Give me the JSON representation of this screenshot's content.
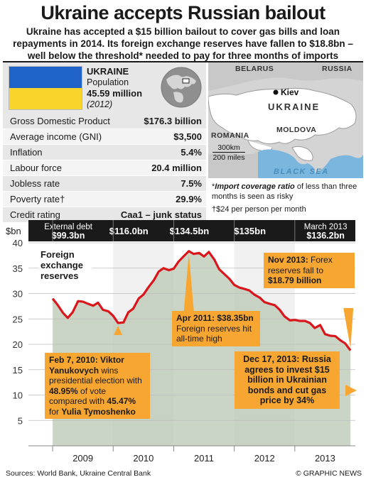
{
  "title": "Ukraine accepts Russian bailout",
  "subtitle": "Ukraine has accepted a $15 billion bailout to cover gas bills and loan repayments in 2014. Its foreign exchange reserves have fallen to $18.8bn – well below the threshold* needed to pay for three months of imports",
  "country": {
    "name": "UKRAINE",
    "population_label": "Population",
    "population_value": "45.59 million",
    "population_year": "(2012)",
    "flag_colors": [
      "#1f63c9",
      "#f8d52b"
    ],
    "locator_icon": "globe-locator-icon"
  },
  "stats": [
    {
      "label": "Gross Domestic Product",
      "value": "$176.3 billion"
    },
    {
      "label": "Average income (GNI)",
      "value": "$3,500"
    },
    {
      "label": "Inflation",
      "value": "5.4%"
    },
    {
      "label": "Labour force",
      "value": "20.4 million"
    },
    {
      "label": "Jobless rate",
      "value": "7.5%"
    },
    {
      "label": "Poverty rate†",
      "value": "29.9%"
    },
    {
      "label": "Credit rating",
      "value": "Caa1 – junk status"
    }
  ],
  "map": {
    "labels": {
      "belarus": "BELARUS",
      "russia": "RUSSIA",
      "ukraine": "UKRAINE",
      "romania": "ROMANIA",
      "moldova": "MOLDOVA",
      "black_sea": "BLACK SEA",
      "capital": "Kiev"
    },
    "scale_km": "300km",
    "scale_miles": "200 miles"
  },
  "notes": {
    "import_coverage_term": "Import coverage ratio",
    "import_coverage_rest": "of less than three months is seen as risky",
    "import_coverage_prefix": "*",
    "poverty_note": "†$24 per person per month"
  },
  "chart_data": {
    "type": "line",
    "ylabel": "$bn",
    "ylim": [
      0,
      40
    ],
    "yticks": [
      5,
      10,
      15,
      20,
      25,
      30,
      35,
      40
    ],
    "years": [
      "2009",
      "2010",
      "2011",
      "2012",
      "2013"
    ],
    "series": [
      {
        "values": [
          [
            2009.0,
            29.0
          ],
          [
            2009.08,
            27.8
          ],
          [
            2009.17,
            26.2
          ],
          [
            2009.25,
            25.2
          ],
          [
            2009.33,
            26.3
          ],
          [
            2009.42,
            28.5
          ],
          [
            2009.5,
            28.4
          ],
          [
            2009.58,
            28.0
          ],
          [
            2009.67,
            27.6
          ],
          [
            2009.75,
            28.2
          ],
          [
            2009.83,
            26.8
          ],
          [
            2009.92,
            26.5
          ],
          [
            2010.0,
            25.6
          ],
          [
            2010.08,
            24.2
          ],
          [
            2010.17,
            24.3
          ],
          [
            2010.25,
            26.3
          ],
          [
            2010.33,
            27.0
          ],
          [
            2010.42,
            29.0
          ],
          [
            2010.5,
            29.8
          ],
          [
            2010.58,
            31.2
          ],
          [
            2010.67,
            32.6
          ],
          [
            2010.75,
            34.3
          ],
          [
            2010.83,
            35.0
          ],
          [
            2010.92,
            34.6
          ],
          [
            2011.0,
            34.9
          ],
          [
            2011.08,
            36.3
          ],
          [
            2011.17,
            37.4
          ],
          [
            2011.25,
            38.35
          ],
          [
            2011.33,
            37.8
          ],
          [
            2011.42,
            38.0
          ],
          [
            2011.5,
            37.3
          ],
          [
            2011.58,
            38.2
          ],
          [
            2011.67,
            36.7
          ],
          [
            2011.75,
            34.8
          ],
          [
            2011.83,
            33.9
          ],
          [
            2011.92,
            32.9
          ],
          [
            2012.0,
            31.7
          ],
          [
            2012.08,
            31.2
          ],
          [
            2012.17,
            30.9
          ],
          [
            2012.25,
            30.6
          ],
          [
            2012.33,
            29.8
          ],
          [
            2012.42,
            29.2
          ],
          [
            2012.5,
            28.3
          ],
          [
            2012.58,
            28.0
          ],
          [
            2012.67,
            27.7
          ],
          [
            2012.75,
            26.8
          ],
          [
            2012.83,
            25.5
          ],
          [
            2012.92,
            24.7
          ],
          [
            2013.0,
            24.8
          ],
          [
            2013.08,
            24.6
          ],
          [
            2013.17,
            24.6
          ],
          [
            2013.25,
            24.2
          ],
          [
            2013.33,
            23.2
          ],
          [
            2013.42,
            23.8
          ],
          [
            2013.5,
            22.0
          ],
          [
            2013.58,
            21.7
          ],
          [
            2013.67,
            21.6
          ],
          [
            2013.75,
            20.8
          ],
          [
            2013.83,
            20.2
          ],
          [
            2013.92,
            18.79
          ]
        ]
      }
    ],
    "line_color": "#d9161c",
    "area_color": "#b9c7b2",
    "annotation_label": "Foreign exchange reserves",
    "debt_band": [
      {
        "label": "External debt",
        "value": "$99.3bn",
        "x": 2009.0
      },
      {
        "label": "",
        "value": "$116.0bn",
        "x": 2010.0
      },
      {
        "label": "",
        "value": "$134.5bn",
        "x": 2011.0
      },
      {
        "label": "",
        "value": "$135bn",
        "x": 2012.0
      },
      {
        "label": "March 2013",
        "value": "$136.2bn",
        "x": 2013.25
      }
    ],
    "callouts": {
      "feb2010": {
        "lead": "Feb 7, 2010:",
        "name1": "Viktor Yanukovych",
        "mid": "wins presidential election with",
        "pct1": "48.95%",
        "mid2": "of vote compared with",
        "pct2": "45.47%",
        "for": "for",
        "name2": "Yulia Tymoshenko"
      },
      "apr2011": {
        "lead": "Apr 2011:",
        "value": "$38.35bn",
        "text": "Foreign reserves hit all-time high"
      },
      "nov2013": {
        "lead": "Nov 2013:",
        "text": "Forex reserves fall to",
        "value": "$18.79 billion"
      },
      "dec2013": {
        "text": "Dec 17, 2013: Russia agrees to invest $15 billion in Ukrainian bonds and cut gas price by 34%"
      }
    }
  },
  "sources": "Sources: World Bank, Ukraine Central Bank",
  "credit": "© GRAPHIC NEWS",
  "watermark": "GRAPHIC NEWS"
}
